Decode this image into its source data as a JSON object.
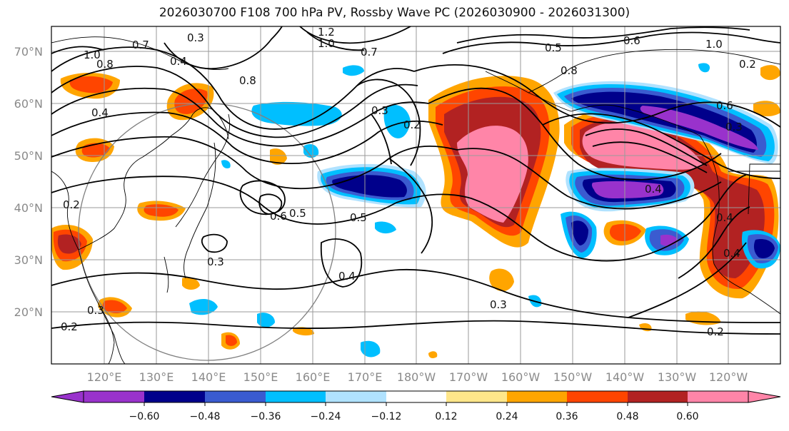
{
  "title": "2026030700 F108 700 hPa PV, Rossby Wave PC (2026030900 - 2026031300)",
  "latitude_labels": [
    "70°N",
    "60°N",
    "50°N",
    "40°N",
    "30°N",
    "20°N"
  ],
  "longitude_labels": [
    "120°E",
    "130°E",
    "140°E",
    "150°E",
    "160°E",
    "170°E",
    "180°W",
    "170°W",
    "160°W",
    "150°W",
    "140°W",
    "130°W",
    "120°W"
  ],
  "colorbar": {
    "tick_labels": [
      "−0.60",
      "−0.48",
      "−0.36",
      "−0.24",
      "−0.12",
      "0.12",
      "0.24",
      "0.36",
      "0.48",
      "0.60"
    ],
    "colors": [
      "#9932cc",
      "#00008b",
      "#3a5bd0",
      "#00bfff",
      "#b0e2ff",
      "#ffffff",
      "#ffe68a",
      "#ffa500",
      "#ff4500",
      "#b22222",
      "#ff85a8"
    ]
  },
  "contour_labels": [
    "1.2",
    "1.0",
    "0.7",
    "0.8",
    "0.4",
    "0.3",
    "0.7",
    "0.5",
    "0.6",
    "1.0",
    "0.8",
    "0.4",
    "0.3",
    "0.2",
    "0.5",
    "0.6",
    "0.4",
    "0.3",
    "0.3",
    "0.2",
    "0.2",
    "0.6",
    "0.3",
    "0.4",
    "0.4",
    "0.4",
    "0.2",
    "0.3",
    "0.2",
    "0.5",
    "0.8",
    "1.0"
  ]
}
